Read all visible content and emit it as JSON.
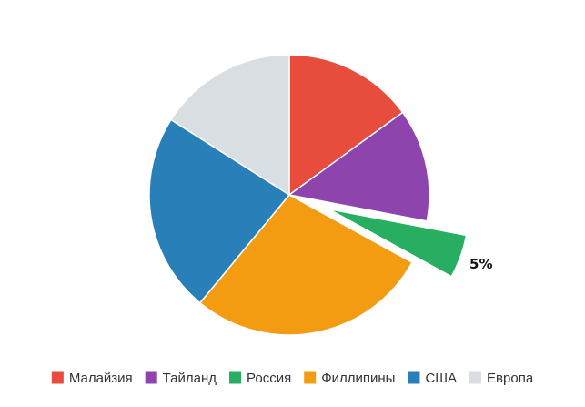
{
  "chart_data": {
    "type": "pie",
    "slices": [
      {
        "name": "Малайзия",
        "value": 15,
        "color": "#e74c3c",
        "label": "",
        "exploded": false
      },
      {
        "name": "Тайланд",
        "value": 13,
        "color": "#8e44ad",
        "label": "",
        "exploded": false
      },
      {
        "name": "Россия",
        "value": 5,
        "color": "#27ae60",
        "label": "5%",
        "exploded": true
      },
      {
        "name": "Филлипины",
        "value": 28,
        "color": "#f39c12",
        "label": "",
        "exploded": false
      },
      {
        "name": "США",
        "value": 23,
        "color": "#2980b9",
        "label": "",
        "exploded": false
      },
      {
        "name": "Европа",
        "value": 16,
        "color": "#d9dee2",
        "label": "",
        "exploded": false
      }
    ],
    "legend_position": "bottom",
    "start_angle": "top",
    "direction": "clockwise"
  }
}
